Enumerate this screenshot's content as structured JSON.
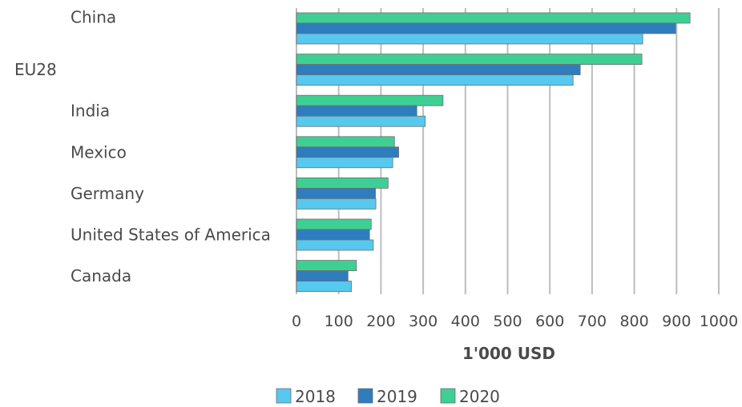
{
  "chart_data": {
    "type": "bar",
    "orientation": "horizontal",
    "title": "",
    "xlabel": "1'000 USD",
    "ylabel": "",
    "xlim": [
      0,
      1000
    ],
    "xticks": [
      0,
      100,
      200,
      300,
      400,
      500,
      600,
      700,
      800,
      900,
      1000
    ],
    "grid": true,
    "legend_position": "bottom",
    "categories": [
      "China",
      "EU28",
      "India",
      "Mexico",
      "Germany",
      "United States of America",
      "Canada"
    ],
    "series": [
      {
        "name": "2018",
        "color": "#57c8ee",
        "values": [
          820,
          655,
          305,
          228,
          188,
          182,
          130
        ]
      },
      {
        "name": "2019",
        "color": "#2e7dbf",
        "values": [
          898,
          672,
          285,
          242,
          187,
          173,
          122
        ]
      },
      {
        "name": "2020",
        "color": "#3ecf94",
        "values": [
          932,
          818,
          347,
          232,
          217,
          177,
          142
        ]
      }
    ]
  }
}
